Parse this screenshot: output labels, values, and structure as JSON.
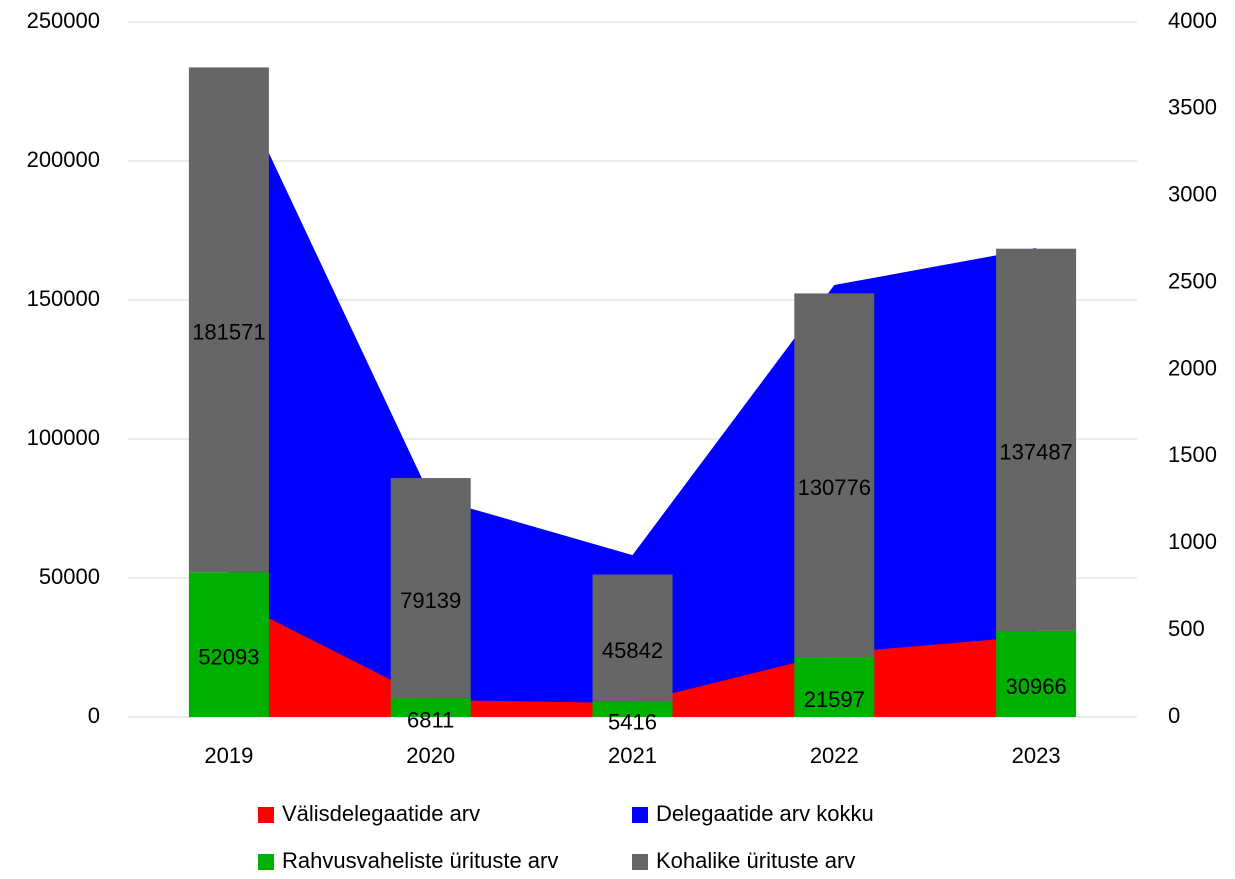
{
  "chart_data": {
    "type": "combo",
    "categories": [
      "2019",
      "2020",
      "2021",
      "2022",
      "2023"
    ],
    "series": [
      {
        "name": "Välisdelegaatide arv",
        "type": "area",
        "axis": "y2",
        "color": "#ff0000",
        "values": [
          685,
          98,
          80,
          368,
          466
        ]
      },
      {
        "name": "Delegaatide arv kokku",
        "type": "area",
        "axis": "y2",
        "color": "#0000ff",
        "values": [
          3735,
          1266,
          932,
          2486,
          2699
        ]
      },
      {
        "name": "Rahvusvaheliste ürituste arv",
        "type": "bar",
        "color": "#00b000",
        "values": [
          52093,
          6811,
          5416,
          21597,
          30966
        ]
      },
      {
        "name": "Kohalike ürituste arv",
        "type": "bar",
        "color": "#666666",
        "values": [
          181571,
          79139,
          45842,
          130776,
          137487
        ]
      }
    ],
    "ylim": [
      0,
      250000
    ],
    "yticks": [
      0,
      50000,
      100000,
      150000,
      200000,
      250000
    ],
    "y2lim": [
      0,
      4000
    ],
    "y2ticks": [
      0,
      500,
      1000,
      1500,
      2000,
      2500,
      3000,
      3500,
      4000
    ],
    "grid": true,
    "legend": "bottom"
  }
}
